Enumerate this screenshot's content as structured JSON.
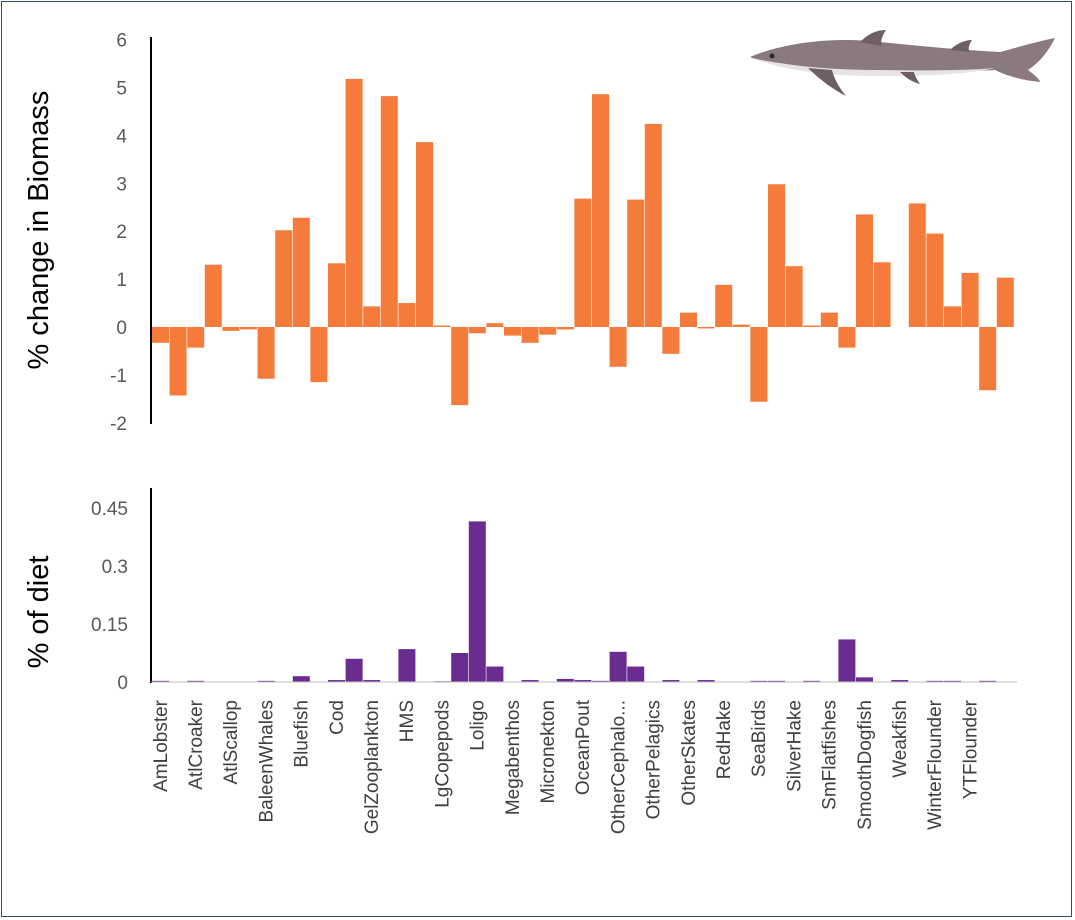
{
  "colors": {
    "biomass_bar": "#f47b3a",
    "diet_bar": "#6a2c91",
    "frame": "#2f4f7a",
    "axis": "#000000"
  },
  "shark_image": {
    "icon": "dogfish-shark-illustration"
  },
  "chart_data": [
    {
      "type": "bar",
      "ylabel": "% change in Biomass",
      "ylim": [
        -2,
        6
      ],
      "yticks": [
        "6",
        "5",
        "4",
        "3",
        "2",
        "1",
        "0",
        "-1",
        "-2"
      ],
      "ytick_values": [
        6,
        5,
        4,
        3,
        2,
        1,
        0,
        -1,
        -2
      ],
      "values": [
        -0.33,
        -1.43,
        -0.43,
        1.3,
        -0.08,
        -0.05,
        -1.08,
        2.02,
        2.28,
        -1.15,
        1.33,
        5.18,
        0.43,
        4.82,
        0.5,
        3.86,
        0.03,
        -1.63,
        -0.13,
        0.08,
        -0.18,
        -0.33,
        -0.16,
        -0.05,
        2.68,
        4.86,
        -0.83,
        2.66,
        4.24,
        -0.56,
        0.3,
        -0.03,
        0.88,
        0.05,
        -1.56,
        2.98,
        1.27,
        0.03,
        0.3,
        -0.43,
        2.35,
        1.35,
        0.0,
        2.58,
        1.95,
        0.43,
        1.13,
        -1.32,
        1.03
      ]
    },
    {
      "type": "bar",
      "ylabel": "% of diet",
      "ylim": [
        0,
        0.5
      ],
      "yticks": [
        "0.45",
        "0.3",
        "0.15",
        "0"
      ],
      "ytick_values": [
        0.45,
        0.3,
        0.15,
        0
      ],
      "values": [
        0.003,
        0.0,
        0.003,
        0.0,
        0.0,
        0.0,
        0.003,
        0.0,
        0.015,
        0.0,
        0.005,
        0.06,
        0.005,
        0.0,
        0.085,
        0.0,
        0.002,
        0.075,
        0.415,
        0.04,
        0.0,
        0.005,
        0.0,
        0.008,
        0.005,
        0.003,
        0.078,
        0.04,
        0.0,
        0.005,
        0.0,
        0.005,
        0.0,
        0.0,
        0.003,
        0.003,
        0.0,
        0.003,
        0.0,
        0.11,
        0.012,
        0.0,
        0.005,
        0.0,
        0.003,
        0.003,
        0.0,
        0.003,
        0.0
      ]
    }
  ],
  "categories": [
    "AmLobster",
    "AtlCroaker",
    "AtlScallop",
    "BaleenWhales",
    "Bluefish",
    "Cod",
    "GelZooplankton",
    "HMS",
    "LgCopepods",
    "Loligo",
    "Megabenthos",
    "Micronekton",
    "OceanPout",
    "OtherCephalo...",
    "OtherPelagics",
    "OtherSkates",
    "RedHake",
    "SeaBirds",
    "SilverHake",
    "SmFlatfishes",
    "SmoothDogfish",
    "Weakfish",
    "WinterFlounder",
    "YTFlounder"
  ]
}
